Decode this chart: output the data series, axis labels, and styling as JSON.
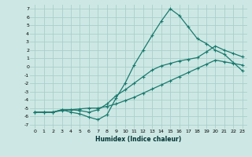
{
  "xlabel": "Humidex (Indice chaleur)",
  "bg_color": "#cde8e4",
  "grid_color": "#aacfcb",
  "line_color": "#1a7a6e",
  "xlim": [
    -0.5,
    23.5
  ],
  "ylim": [
    -7.5,
    7.5
  ],
  "xticks": [
    0,
    1,
    2,
    3,
    4,
    5,
    6,
    7,
    8,
    9,
    10,
    11,
    12,
    13,
    14,
    15,
    16,
    17,
    18,
    19,
    20,
    21,
    22,
    23
  ],
  "yticks": [
    -7,
    -6,
    -5,
    -4,
    -3,
    -2,
    -1,
    0,
    1,
    2,
    3,
    4,
    5,
    6,
    7
  ],
  "line1_x": [
    0,
    1,
    2,
    3,
    4,
    5,
    6,
    7,
    8,
    9,
    10,
    11,
    12,
    13,
    14,
    15,
    16,
    17,
    18,
    19,
    20,
    21,
    22,
    23
  ],
  "line1_y": [
    -5.5,
    -5.5,
    -5.5,
    -5.2,
    -5.5,
    -5.7,
    -6.1,
    -6.4,
    -5.8,
    -3.8,
    -2.0,
    0.2,
    2.0,
    3.8,
    5.5,
    7.0,
    6.2,
    4.8,
    3.4,
    2.8,
    2.0,
    1.5,
    0.5,
    -0.5
  ],
  "line2_x": [
    0,
    1,
    2,
    3,
    4,
    5,
    6,
    7,
    8,
    9,
    10,
    11,
    12,
    13,
    14,
    15,
    16,
    17,
    18,
    19,
    20,
    21,
    22,
    23
  ],
  "line2_y": [
    -5.5,
    -5.5,
    -5.5,
    -5.2,
    -5.2,
    -5.3,
    -5.5,
    -5.2,
    -4.5,
    -3.5,
    -2.8,
    -2.0,
    -1.2,
    -0.4,
    0.1,
    0.4,
    0.7,
    0.9,
    1.1,
    1.8,
    2.5,
    2.0,
    1.6,
    1.2
  ],
  "line3_x": [
    0,
    1,
    2,
    3,
    4,
    5,
    6,
    7,
    8,
    9,
    10,
    11,
    12,
    13,
    14,
    15,
    16,
    17,
    18,
    19,
    20,
    21,
    22,
    23
  ],
  "line3_y": [
    -5.5,
    -5.5,
    -5.5,
    -5.3,
    -5.2,
    -5.1,
    -5.0,
    -5.0,
    -4.8,
    -4.5,
    -4.1,
    -3.7,
    -3.2,
    -2.7,
    -2.2,
    -1.7,
    -1.2,
    -0.7,
    -0.2,
    0.3,
    0.8,
    0.6,
    0.4,
    0.2
  ]
}
